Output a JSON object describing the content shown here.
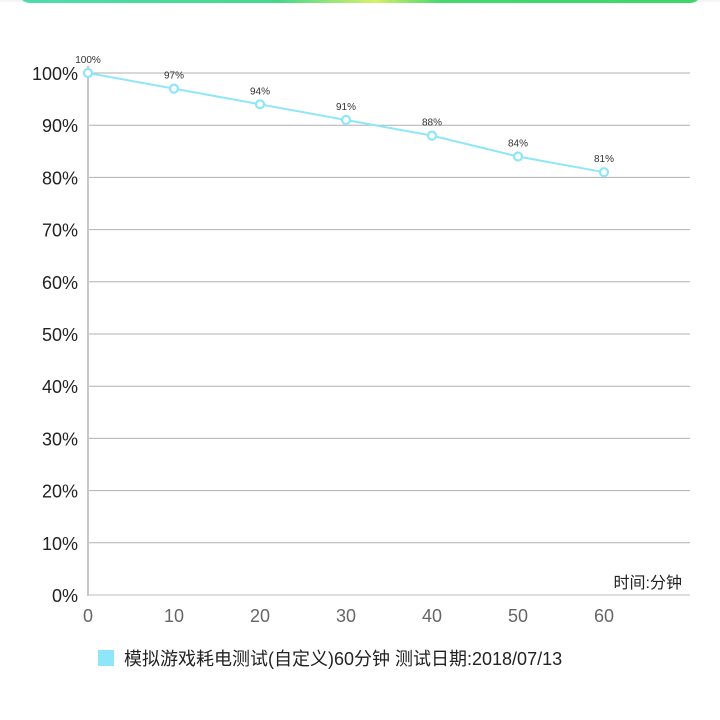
{
  "header": {
    "bar_colors": [
      "#4fdcae",
      "#45d88a",
      "#d6f06a",
      "#3fd669"
    ]
  },
  "chart_data": {
    "type": "line",
    "title": "",
    "xlabel": "时间:分钟",
    "ylabel": "",
    "x": [
      0,
      10,
      20,
      30,
      40,
      50,
      60
    ],
    "x_ticks": [
      "0",
      "10",
      "20",
      "30",
      "40",
      "50",
      "60"
    ],
    "y_ticks": [
      "0%",
      "10%",
      "20%",
      "30%",
      "40%",
      "50%",
      "60%",
      "70%",
      "80%",
      "90%",
      "100%"
    ],
    "ylim": [
      0,
      100
    ],
    "xlim": [
      0,
      70
    ],
    "grid": true,
    "legend_position": "bottom",
    "series": [
      {
        "name": "模拟游戏耗电测试(自定义)60分钟",
        "values": [
          100,
          97,
          94,
          91,
          88,
          84,
          81
        ],
        "labels": [
          "100%",
          "97%",
          "94%",
          "91%",
          "88%",
          "84%",
          "81%"
        ],
        "color": "#8ee6f8"
      }
    ]
  },
  "legend": {
    "swatch_color": "#8ee6f8",
    "text": "模拟游戏耗电测试(自定义)60分钟   测试日期:2018/07/13"
  },
  "axis": {
    "unit_label": "时间:分钟"
  }
}
